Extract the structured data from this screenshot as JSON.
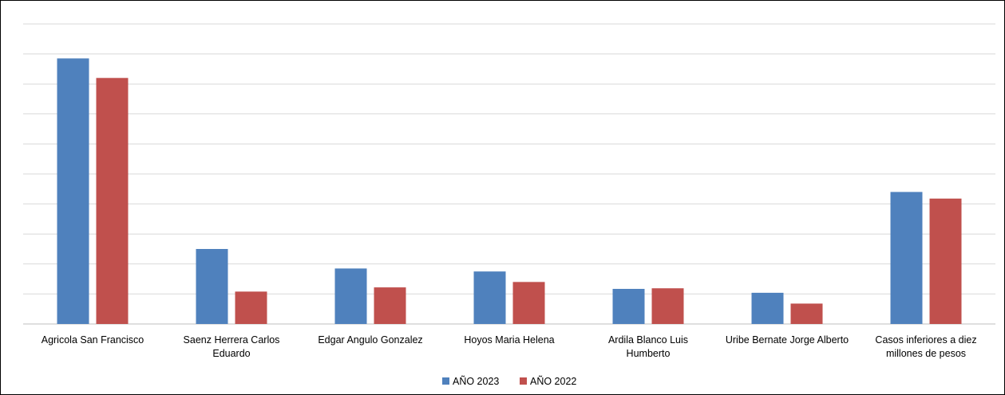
{
  "chart_data": {
    "type": "bar",
    "categories": [
      [
        "Agricola San Francisco"
      ],
      [
        "Saenz Herrera Carlos",
        "Eduardo"
      ],
      [
        "Edgar Angulo Gonzalez"
      ],
      [
        "Hoyos  Maria Helena"
      ],
      [
        "Ardila Blanco  Luis",
        "Humberto"
      ],
      [
        "Uribe Bernate Jorge Alberto"
      ],
      [
        "Casos inferiores a diez",
        "millones de pesos"
      ]
    ],
    "series": [
      {
        "name": "AÑO 2023",
        "color": "#4F81BD",
        "values": [
          8.85,
          2.5,
          1.85,
          1.75,
          1.17,
          1.04,
          4.4
        ]
      },
      {
        "name": "AÑO 2022",
        "color": "#C0504D",
        "values": [
          8.2,
          1.08,
          1.22,
          1.4,
          1.19,
          0.68,
          4.18
        ]
      }
    ],
    "ylim": [
      0,
      10
    ],
    "gridlines": true,
    "axis_tick_labels": false,
    "legend_position": "bottom"
  }
}
